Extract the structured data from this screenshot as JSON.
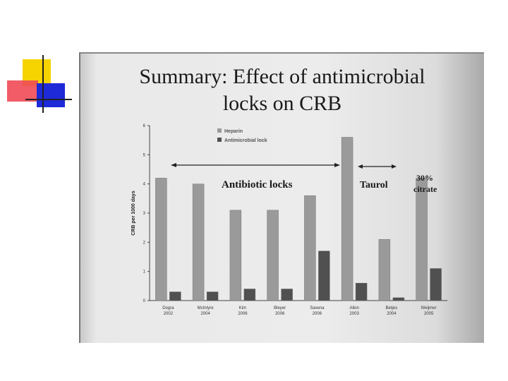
{
  "slide": {
    "title_line1": "Summary: Effect of antimicrobial",
    "title_line2": "locks on CRB"
  },
  "colors": {
    "heparin": "#9a9a9a",
    "antimicrobial": "#505050"
  },
  "chart_data": {
    "type": "bar",
    "title": "",
    "xlabel": "",
    "ylabel": "CRB per 1000 days",
    "ylim": [
      0,
      6
    ],
    "yticks": [
      "0",
      "1",
      "2",
      "3",
      "4",
      "5",
      "6"
    ],
    "categories": [
      [
        "Dogra",
        "2002"
      ],
      [
        "McIntyre",
        "2004"
      ],
      [
        "Kim",
        "2006"
      ],
      [
        "Bleyer",
        "2006"
      ],
      [
        "Saxena",
        "2006"
      ],
      [
        "Allon",
        "2003"
      ],
      [
        "Betjes",
        "2004"
      ],
      [
        "Weijmer",
        "2005"
      ]
    ],
    "series": [
      {
        "name": "Heparin",
        "values": [
          4.2,
          4.0,
          3.1,
          3.1,
          3.6,
          5.6,
          2.1,
          4.2
        ]
      },
      {
        "name": "Antimicrobial lock",
        "values": [
          0.3,
          0.3,
          0.4,
          0.4,
          1.7,
          0.6,
          0.1,
          1.1
        ]
      }
    ],
    "legend_position": "top-left",
    "grid": false,
    "annotations": {
      "antibiotic": "Antibiotic locks",
      "taurol": "Taurol",
      "citrate_line1": "30%",
      "citrate_line2": "citrate"
    }
  }
}
